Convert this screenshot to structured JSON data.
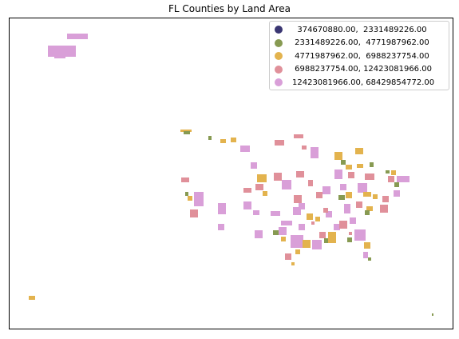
{
  "title": "FL Counties by Land Area",
  "legend": {
    "items": [
      {
        "label": "  374670880.00,  2331489226.00",
        "color": "#3a3672"
      },
      {
        "label": " 2331489226.00,  4771987962.00",
        "color": "#879a52"
      },
      {
        "label": " 4771987962.00,  6988237754.00",
        "color": "#e3b34e"
      },
      {
        "label": " 6988237754.00, 12423081966.00",
        "color": "#e0909a"
      },
      {
        "label": "12423081966.00, 68429854772.00",
        "color": "#d99fd8"
      }
    ]
  },
  "map": {
    "classes": 5
  }
}
